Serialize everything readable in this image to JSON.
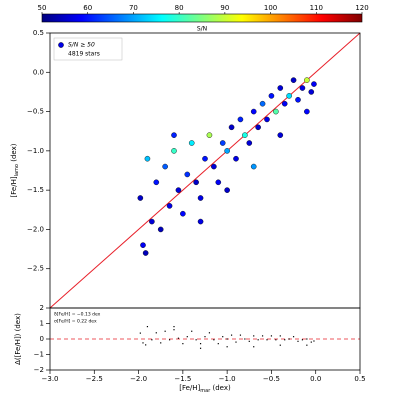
{
  "chart_data": [
    {
      "type": "colorbar",
      "label": "S/N",
      "clim": [
        50,
        120
      ],
      "ticks": [
        50,
        60,
        70,
        80,
        90,
        100,
        110,
        120
      ],
      "colormap": [
        [
          0,
          "#00007f"
        ],
        [
          0.125,
          "#0000ff"
        ],
        [
          0.375,
          "#00ffff"
        ],
        [
          0.625,
          "#ffff00"
        ],
        [
          0.875,
          "#ff0000"
        ],
        [
          1,
          "#7f0000"
        ]
      ]
    },
    {
      "type": "scatter",
      "ylabel": {
        "main": "[Fe/H]",
        "sub": "lamo",
        "unit": " (dex)"
      },
      "legend": {
        "label": "S/N ≥ 50",
        "count": "4819 stars"
      },
      "legend_corner": "upper left",
      "xlim": [
        -3,
        0.5
      ],
      "ylim": [
        -3,
        0.5
      ],
      "yticks": [
        {
          "value": 0.5,
          "label": "0.5"
        },
        {
          "value": 0,
          "label": "0.0"
        },
        {
          "value": -0.5,
          "label": "−0.5"
        },
        {
          "value": -1,
          "label": "−1.0"
        },
        {
          "value": -1.5,
          "label": "−1.5"
        },
        {
          "value": -2,
          "label": "−2.0"
        },
        {
          "value": -2.5,
          "label": "−2.5"
        }
      ],
      "reference_line_color": "#e8202a",
      "x": [
        -1.98,
        -1.95,
        -1.9,
        -1.85,
        -1.8,
        -1.75,
        -1.7,
        -1.65,
        -1.6,
        -1.55,
        -1.5,
        -1.45,
        -1.4,
        -1.35,
        -1.3,
        -1.25,
        -1.2,
        -1.15,
        -1.1,
        -1.05,
        -1.0,
        -0.95,
        -0.9,
        -0.85,
        -0.8,
        -0.75,
        -0.7,
        -0.65,
        -0.6,
        -0.55,
        -0.5,
        -0.45,
        -0.4,
        -0.35,
        -0.3,
        -0.25,
        -0.2,
        -0.15,
        -0.1,
        -0.05,
        -0.02,
        -1.92,
        -1.6,
        -1.3,
        -1.0,
        -0.7,
        -0.4,
        -0.1
      ],
      "values": [
        -1.6,
        -2.2,
        -1.1,
        -1.9,
        -1.4,
        -2.0,
        -1.2,
        -1.7,
        -1.0,
        -1.5,
        -1.8,
        -1.3,
        -0.9,
        -1.4,
        -1.6,
        -1.1,
        -0.8,
        -1.2,
        -1.4,
        -0.9,
        -1.0,
        -0.7,
        -1.1,
        -0.6,
        -0.8,
        -0.9,
        -0.5,
        -0.7,
        -0.4,
        -0.6,
        -0.3,
        -0.5,
        -0.2,
        -0.4,
        -0.3,
        -0.1,
        -0.35,
        -0.2,
        -0.1,
        -0.25,
        -0.15,
        -2.3,
        -0.8,
        -1.9,
        -1.5,
        -1.2,
        -0.8,
        -0.5
      ],
      "sn": [
        55,
        58,
        72,
        56,
        60,
        54,
        65,
        57,
        80,
        56,
        59,
        62,
        75,
        55,
        57,
        60,
        88,
        56,
        58,
        63,
        70,
        55,
        57,
        61,
        78,
        56,
        59,
        55,
        66,
        57,
        60,
        82,
        56,
        58,
        74,
        55,
        60,
        57,
        90,
        56,
        58,
        54,
        61,
        57,
        55,
        69,
        56,
        59
      ]
    },
    {
      "type": "residual",
      "xlabel": {
        "main": "[Fe/H]",
        "sub": "mar",
        "unit": " (dex)"
      },
      "ylabel": "Δ([Fe/H]) (dex)",
      "annotations": [
        "δ[Fe/H] = −0.13 dex",
        "σ[Fe/H] = 0.22 dex"
      ],
      "xlim": [
        -3,
        0.5
      ],
      "ylim": [
        -2,
        2
      ],
      "xticks": [
        {
          "value": -3,
          "label": "−3.0"
        },
        {
          "value": -2.5,
          "label": "−2.5"
        },
        {
          "value": -2,
          "label": "−2.0"
        },
        {
          "value": -1.5,
          "label": "−1.5"
        },
        {
          "value": -1,
          "label": "−1.0"
        },
        {
          "value": -0.5,
          "label": "−0.5"
        },
        {
          "value": 0,
          "label": "0.0"
        },
        {
          "value": 0.5,
          "label": "0.5"
        }
      ],
      "yticks": [
        {
          "value": -2,
          "label": "−2"
        },
        {
          "value": -1,
          "label": "−1"
        },
        0,
        1,
        2
      ],
      "zero_line": 0,
      "zero_line_color": "#e8202a",
      "color": "#000000",
      "x": [
        -1.98,
        -1.95,
        -1.9,
        -1.85,
        -1.8,
        -1.75,
        -1.7,
        -1.65,
        -1.6,
        -1.55,
        -1.5,
        -1.45,
        -1.4,
        -1.35,
        -1.3,
        -1.25,
        -1.2,
        -1.15,
        -1.1,
        -1.05,
        -1.0,
        -0.95,
        -0.9,
        -0.85,
        -0.8,
        -0.75,
        -0.7,
        -0.65,
        -0.6,
        -0.55,
        -0.5,
        -0.45,
        -0.4,
        -0.35,
        -0.3,
        -0.25,
        -0.2,
        -0.15,
        -0.1,
        -0.05,
        -0.02,
        -1.92,
        -1.6,
        -1.3,
        -1.0,
        -0.7,
        -0.4,
        -0.1
      ],
      "values": [
        0.38,
        -0.25,
        0.8,
        -0.05,
        0.4,
        -0.25,
        0.5,
        -0.05,
        0.6,
        0.05,
        -0.3,
        0.15,
        0.5,
        -0.05,
        -0.3,
        0.15,
        0.4,
        -0.05,
        -0.3,
        0.15,
        0,
        0.25,
        -0.2,
        0.25,
        0,
        -0.15,
        0.2,
        -0.05,
        0.2,
        -0.05,
        0.2,
        -0.05,
        0.2,
        -0.05,
        0,
        0.15,
        -0.15,
        -0.05,
        0,
        -0.2,
        -0.13,
        -0.38,
        0.8,
        -0.6,
        -0.5,
        -0.5,
        -0.4,
        -0.4
      ]
    }
  ]
}
